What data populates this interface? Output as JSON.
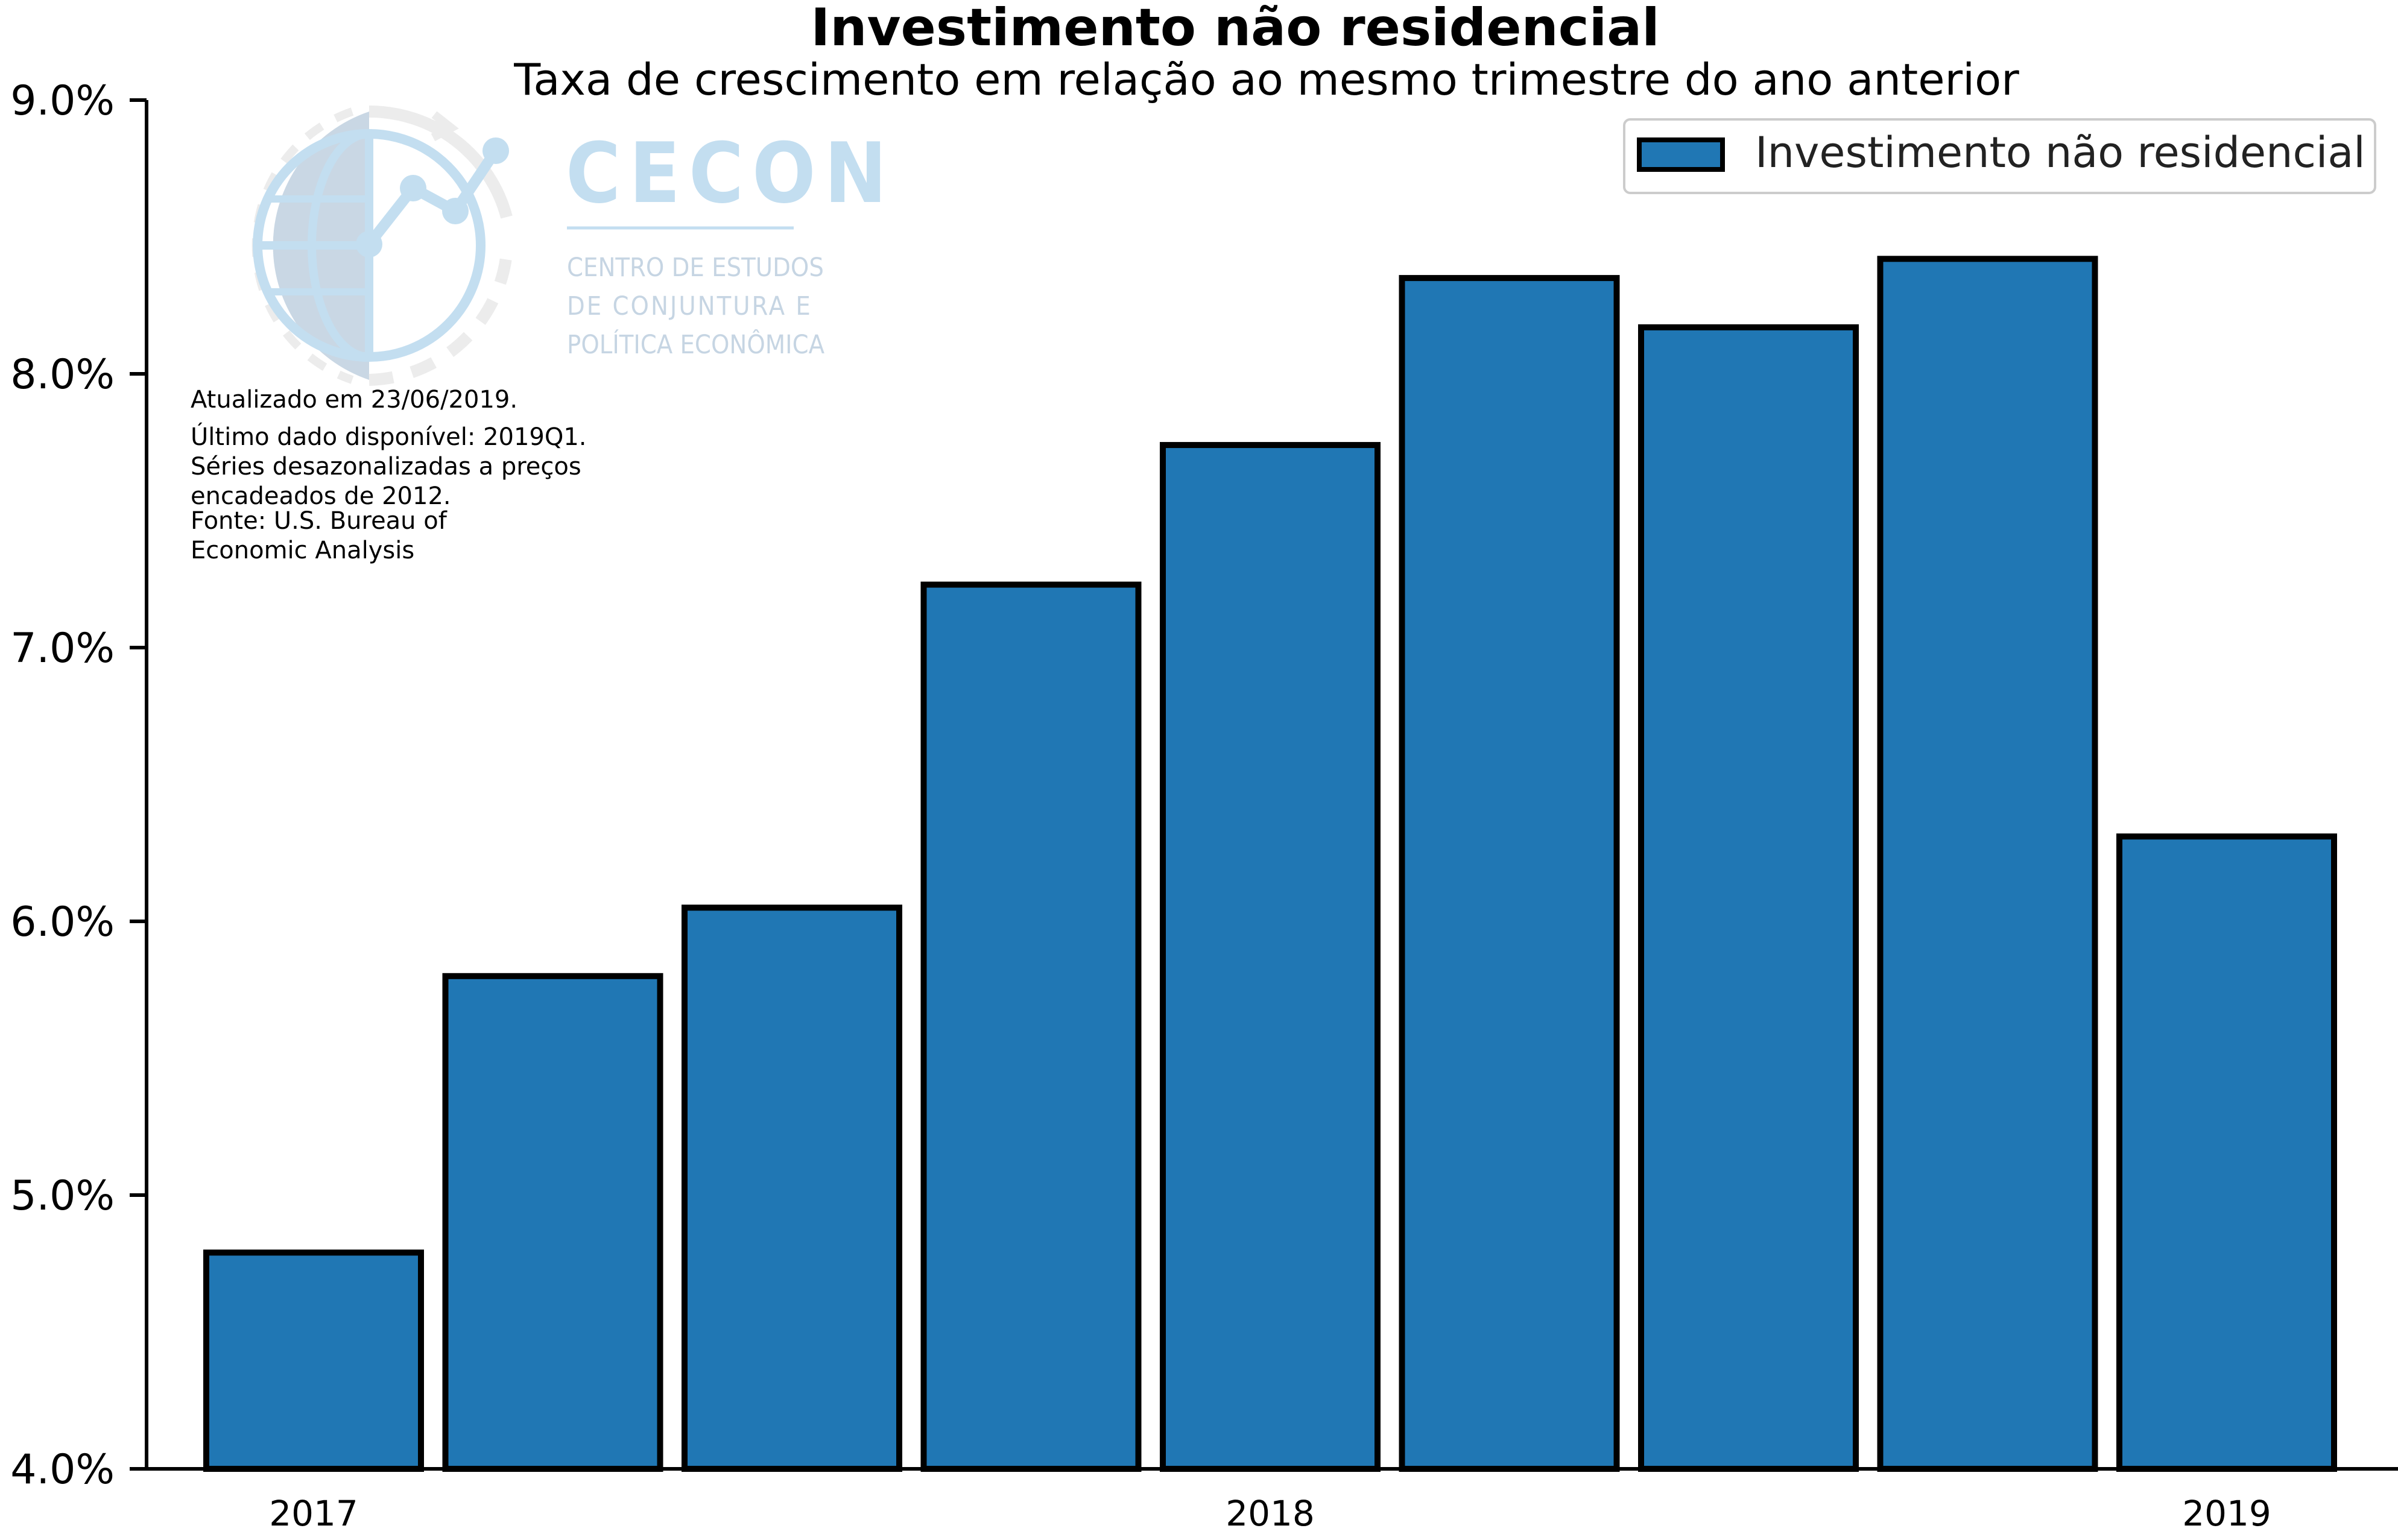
{
  "chart_data": {
    "type": "bar",
    "title": "Investimento não residencial",
    "subtitle": "Taxa de crescimento em relação ao mesmo trimestre do ano anterior",
    "xlabel": "",
    "ylabel": "",
    "categories": [
      "2017Q1",
      "2017Q2",
      "2017Q3",
      "2017Q4",
      "2018Q1",
      "2018Q2",
      "2018Q3",
      "2018Q4",
      "2019Q1"
    ],
    "x_tick_labels": [
      {
        "category": "2017Q1",
        "label": "2017"
      },
      {
        "category": "2018Q1",
        "label": "2018"
      },
      {
        "category": "2019Q1",
        "label": "2019"
      }
    ],
    "series": [
      {
        "name": "Investimento não residencial",
        "values": [
          4.79,
          5.8,
          6.05,
          7.23,
          7.74,
          8.35,
          8.17,
          8.42,
          6.31
        ]
      }
    ],
    "ylim": [
      4.0,
      9.0
    ],
    "y_ticks": [
      4.0,
      5.0,
      6.0,
      7.0,
      8.0,
      9.0
    ],
    "y_tick_labels": [
      "4.0%",
      "5.0%",
      "6.0%",
      "7.0%",
      "8.0%",
      "9.0%"
    ],
    "grid": false,
    "legend_position": "top-right",
    "colors": {
      "bar_fill": "#2077b4",
      "bar_edge": "#000000"
    },
    "notes": [
      "Atualizado em 23/06/2019.",
      "Último dado disponível: 2019Q1.",
      "Séries desazonalizadas a preços",
      "encadeados de 2012.",
      "Fonte: U.S. Bureau of",
      "Economic Analysis"
    ]
  },
  "watermark": {
    "brand": "CECON",
    "tagline_lines": [
      "CENTRO DE ESTUDOS",
      "DE CONJUNTURA E",
      "POLÍTICA ECONÔMICA"
    ],
    "color": "#c3def0"
  }
}
